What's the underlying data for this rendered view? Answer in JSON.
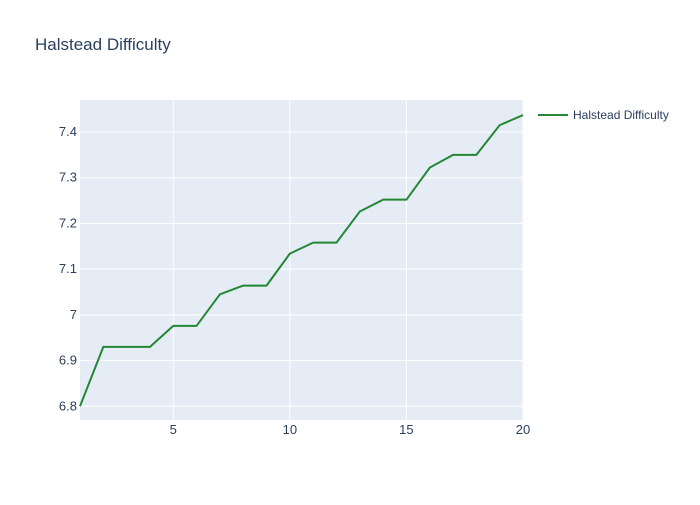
{
  "chart_data": {
    "type": "line",
    "title": "Halstead Difficulty",
    "xlabel": "",
    "ylabel": "",
    "xlim": [
      1,
      20
    ],
    "ylim": [
      6.77,
      7.47
    ],
    "x_ticks": [
      5,
      10,
      15,
      20
    ],
    "y_ticks": [
      6.8,
      6.9,
      7,
      7.1,
      7.2,
      7.3,
      7.4
    ],
    "x_tick_labels": [
      "5",
      "10",
      "15",
      "20"
    ],
    "y_tick_labels": [
      "6.8",
      "6.9",
      "7",
      "7.1",
      "7.2",
      "7.3",
      "7.4"
    ],
    "grid": true,
    "legend_position": "top-right",
    "series": [
      {
        "name": "Halstead Difficulty",
        "color": "#228833",
        "x": [
          1,
          2,
          3,
          4,
          5,
          6,
          7,
          8,
          9,
          10,
          11,
          12,
          13,
          14,
          15,
          16,
          17,
          18,
          19,
          20
        ],
        "values": [
          6.8,
          6.93,
          6.93,
          6.93,
          6.976,
          6.976,
          7.045,
          7.064,
          7.064,
          7.134,
          7.158,
          7.158,
          7.226,
          7.252,
          7.252,
          7.322,
          7.35,
          7.35,
          7.415,
          7.437
        ]
      }
    ]
  },
  "colors": {
    "plot_background": "#e5ecf6",
    "grid": "#ffffff",
    "text": "#2a3f5f"
  }
}
